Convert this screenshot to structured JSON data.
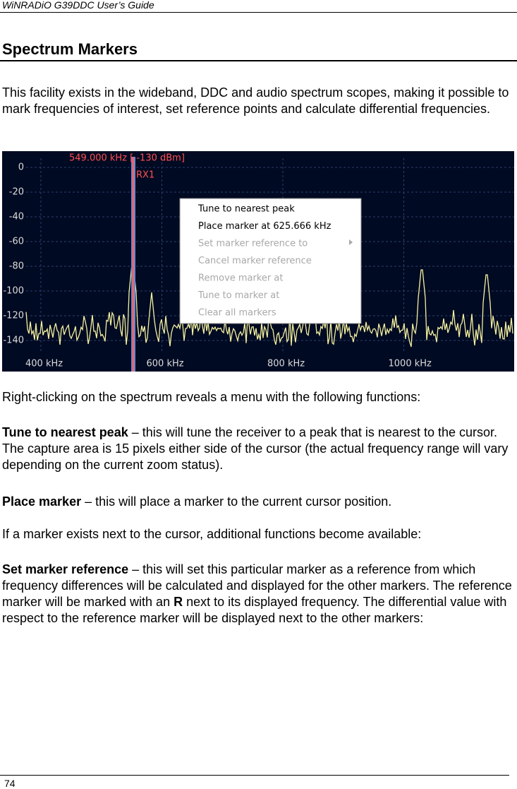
{
  "header": {
    "title": "WiNRADiO G39DDC User’s Guide"
  },
  "section": {
    "title": "Spectrum Markers"
  },
  "intro": [
    {
      "runs": [
        {
          "text": "This facility exists in the wideband, DDC and audio spectrum scopes, making it possible to mark frequencies of interest, set reference points and calculate differential frequencies.",
          "bold": false
        }
      ]
    }
  ],
  "figure": {
    "yticks": [
      "0",
      "-20",
      "-40",
      "-60",
      "-80",
      "-100",
      "-120",
      "-140"
    ],
    "xticks": [
      "400 kHz",
      "600 kHz",
      "800 kHz",
      "1000 kHz"
    ],
    "marker_label": "549.000 kHz [ -130 dBm]",
    "marker_name": "RX1",
    "menu": [
      "Tune to nearest peak",
      "Place marker at 625.666 kHz",
      "Set marker reference to",
      "Cancel marker reference",
      "Remove marker at",
      "Tune to marker at",
      "Clear all markers"
    ]
  },
  "body": [
    {
      "runs": [
        {
          "text": "Right-clicking on the spectrum reveals a menu with the following functions:",
          "bold": false
        }
      ]
    },
    {
      "runs": [
        {
          "text": "Tune to nearest peak",
          "bold": true
        },
        {
          "text": " – this will tune the receiver to a peak that is nearest to the cursor. The capture area is 15 pixels either side of the cursor (the actual frequency range will vary depending on the current zoom status).",
          "bold": false
        }
      ]
    },
    {
      "runs": [
        {
          "text": "Place marker",
          "bold": true
        },
        {
          "text": " – this will place a marker to the current cursor position.",
          "bold": false
        }
      ]
    },
    {
      "runs": [
        {
          "text": "If a marker exists next to the cursor, additional functions become available:",
          "bold": false
        }
      ]
    },
    {
      "runs": [
        {
          "text": "Set marker reference",
          "bold": true
        },
        {
          "text": " – this will set this particular marker as a reference from which frequency differences will be calculated and displayed for the other markers. The reference marker will be marked with an ",
          "bold": false
        },
        {
          "text": "R",
          "bold": true
        },
        {
          "text": " next to its displayed frequency. The differential value with respect to the reference marker will be displayed next to the other markers:",
          "bold": false
        }
      ]
    }
  ],
  "footer": {
    "page": "74"
  }
}
